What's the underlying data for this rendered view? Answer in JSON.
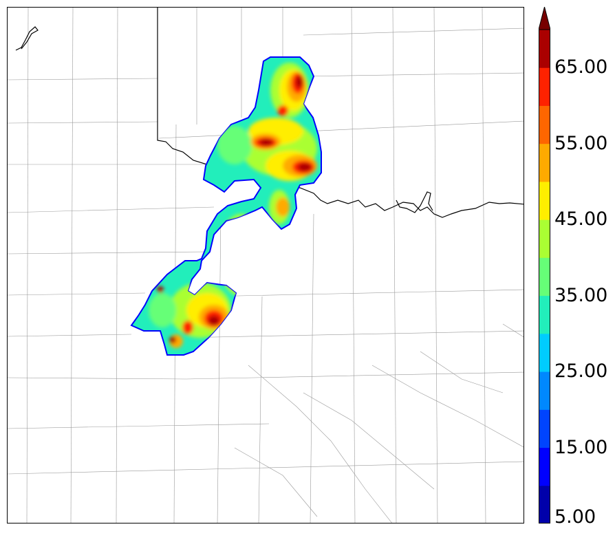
{
  "colorbar": {
    "colors": [
      "#0000aa",
      "#0000ff",
      "#0044ff",
      "#0088ff",
      "#00ccff",
      "#22eebb",
      "#66ff77",
      "#aaff33",
      "#ffee00",
      "#ffaa00",
      "#ff6600",
      "#ff2200",
      "#aa0000",
      "#770000"
    ],
    "ticks": [
      "5.00",
      "15.00",
      "25.00",
      "35.00",
      "45.00",
      "55.00",
      "65.00"
    ],
    "extend": "max"
  }
}
